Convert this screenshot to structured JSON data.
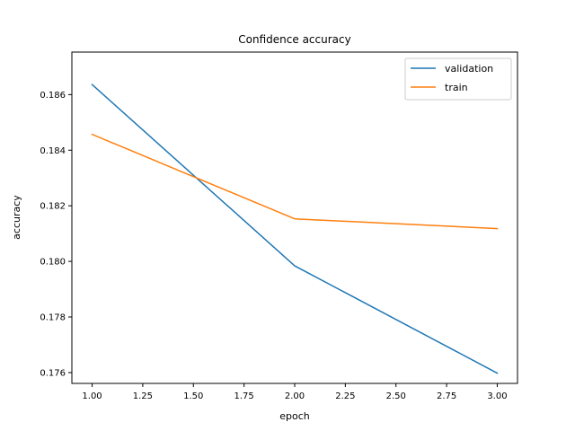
{
  "chart_data": {
    "type": "line",
    "title": "Confidence accuracy",
    "xlabel": "epoch",
    "ylabel": "accuracy",
    "xlim": [
      0.9,
      3.1
    ],
    "ylim": [
      0.17561,
      0.18753
    ],
    "xticks": [
      1.0,
      1.25,
      1.5,
      1.75,
      2.0,
      2.25,
      2.5,
      2.75,
      3.0
    ],
    "xtick_labels": [
      "1.00",
      "1.25",
      "1.50",
      "1.75",
      "2.00",
      "2.25",
      "2.50",
      "2.75",
      "3.00"
    ],
    "yticks": [
      0.176,
      0.178,
      0.18,
      0.182,
      0.184,
      0.186
    ],
    "ytick_labels": [
      "0.176",
      "0.178",
      "0.180",
      "0.182",
      "0.184",
      "0.186"
    ],
    "grid": false,
    "legend_position": "top-right",
    "series": [
      {
        "name": "validation",
        "color": "#1f77b4",
        "x": [
          1,
          2,
          3
        ],
        "values": [
          0.18636,
          0.17984,
          0.17598
        ]
      },
      {
        "name": "train",
        "color": "#ff7f0e",
        "x": [
          1,
          2,
          3
        ],
        "values": [
          0.18457,
          0.18153,
          0.18118
        ]
      }
    ]
  }
}
